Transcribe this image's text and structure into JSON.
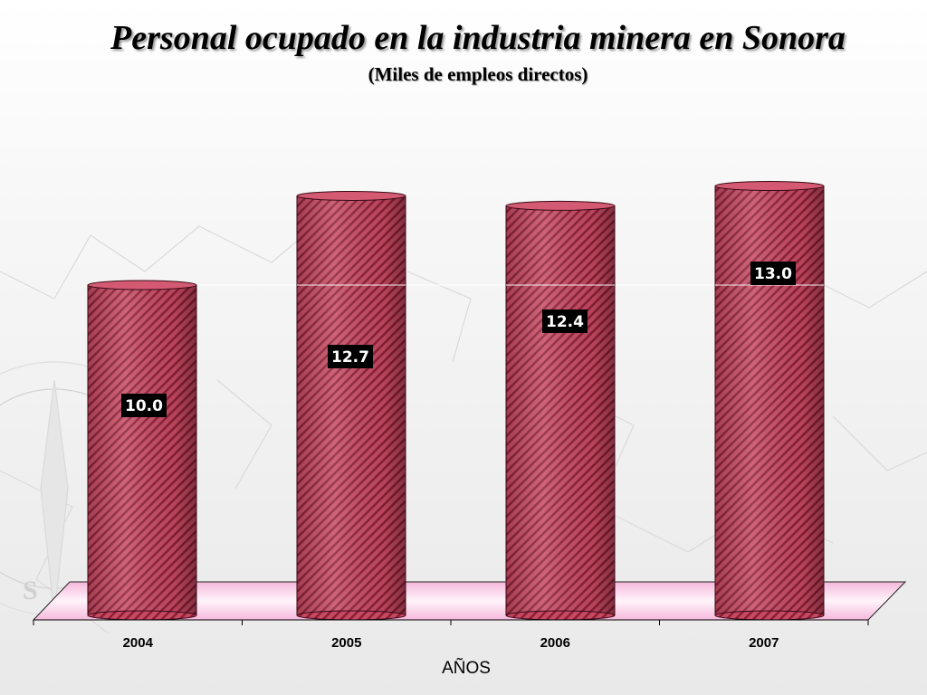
{
  "chart_data": {
    "type": "bar",
    "title": "Personal ocupado en la industria minera en Sonora",
    "subtitle": "(Miles de empleos directos)",
    "xlabel": "AÑOS",
    "ylabel": "",
    "categories": [
      "2004",
      "2005",
      "2006",
      "2007"
    ],
    "values": [
      10.0,
      12.7,
      12.4,
      13.0
    ],
    "value_labels": [
      "10.0",
      "12.7",
      "12.4",
      "13.0"
    ],
    "ylim": [
      0,
      14
    ],
    "gridlines": [
      10
    ],
    "grid": true,
    "legend": "none",
    "bar_shape": "cylinder",
    "colors": {
      "bar_fill": "#c84a62",
      "bar_stripe": "#8c1f38",
      "floor": "#f4b8dc",
      "label_bg": "#000000",
      "label_text": "#ffffff"
    }
  }
}
